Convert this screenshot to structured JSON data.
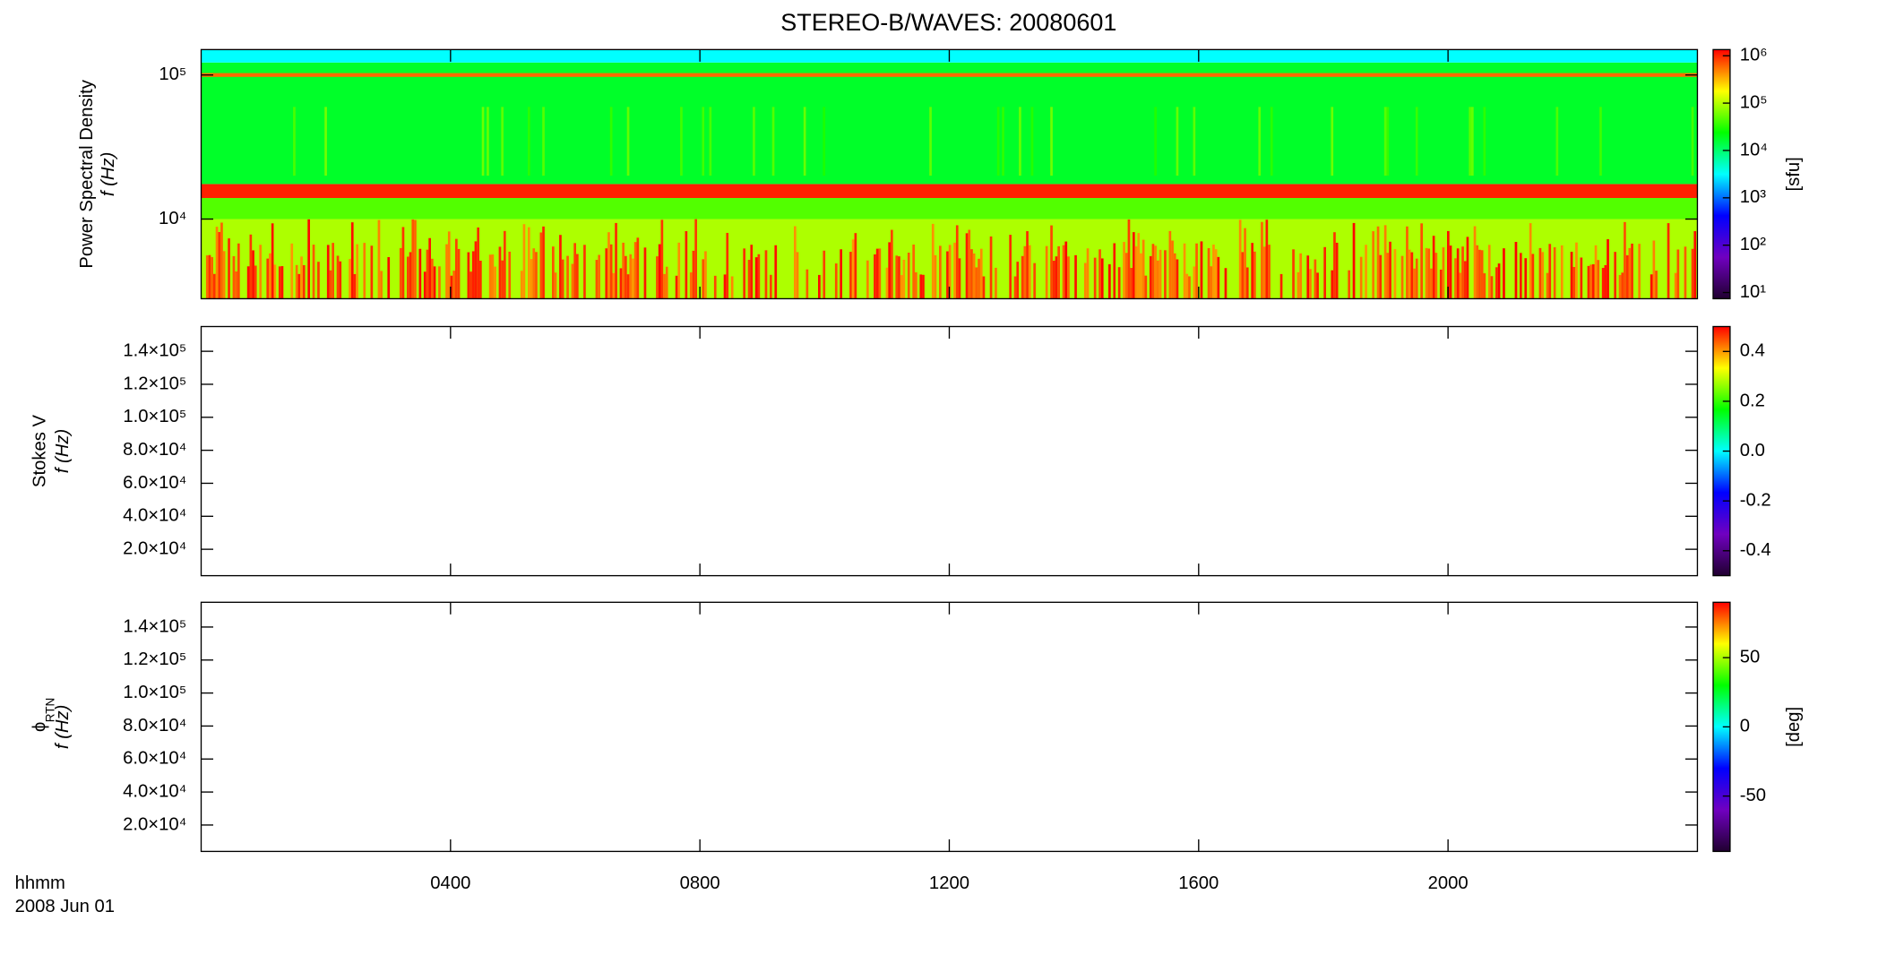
{
  "chart_data": [
    {
      "type": "heatmap",
      "title": "STEREO-B/WAVES: 20080601",
      "ylabel": "Power Spectral Density",
      "ylabel_unit": "f (Hz)",
      "log_y": true,
      "ylim": [
        2800,
        150000
      ],
      "yticks": [
        {
          "value": 10000,
          "label": "10⁴"
        },
        {
          "value": 100000,
          "label": "10⁵"
        }
      ],
      "colorbar_log": true,
      "clim": [
        7.4,
        1350000
      ],
      "cticks": [
        {
          "value": 10,
          "label": "10¹"
        },
        {
          "value": 100,
          "label": "10²"
        },
        {
          "value": 1000,
          "label": "10³"
        },
        {
          "value": 10000,
          "label": "10⁴"
        },
        {
          "value": 100000,
          "label": "10⁵"
        },
        {
          "value": 1000000,
          "label": "10⁶"
        }
      ],
      "colorbar_label": "[sfu]"
    },
    {
      "type": "heatmap",
      "ylabel": "Stokes V",
      "ylabel_unit": "f (Hz)",
      "log_y": false,
      "ylim": [
        4000,
        155000
      ],
      "yticks": [
        {
          "value": 20000,
          "label": "2.0×10⁴"
        },
        {
          "value": 40000,
          "label": "4.0×10⁴"
        },
        {
          "value": 60000,
          "label": "6.0×10⁴"
        },
        {
          "value": 80000,
          "label": "8.0×10⁴"
        },
        {
          "value": 100000,
          "label": "1.0×10⁵"
        },
        {
          "value": 120000,
          "label": "1.2×10⁵"
        },
        {
          "value": 140000,
          "label": "1.4×10⁵"
        }
      ],
      "colorbar_log": false,
      "clim": [
        -0.5,
        0.5
      ],
      "cticks": [
        -0.4,
        -0.2,
        {
          "value": 0,
          "label": "0.0"
        },
        0.2,
        0.4
      ]
    },
    {
      "type": "heatmap",
      "ylabel": "ϕ",
      "ylabel_subscript": "RTN",
      "ylabel_unit": "f (Hz)",
      "log_y": false,
      "ylim": [
        4000,
        155000
      ],
      "yticks": [
        {
          "value": 20000,
          "label": "2.0×10⁴"
        },
        {
          "value": 40000,
          "label": "4.0×10⁴"
        },
        {
          "value": 60000,
          "label": "6.0×10⁴"
        },
        {
          "value": 80000,
          "label": "8.0×10⁴"
        },
        {
          "value": 100000,
          "label": "1.0×10⁵"
        },
        {
          "value": 120000,
          "label": "1.2×10⁵"
        },
        {
          "value": 140000,
          "label": "1.4×10⁵"
        }
      ],
      "colorbar_log": false,
      "clim": [
        -90,
        90
      ],
      "cticks": [
        -50,
        0,
        50
      ],
      "colorbar_label": "[deg]",
      "xlim": [
        0,
        24
      ],
      "xticks": [
        {
          "value": 4,
          "label": "0400"
        },
        {
          "value": 8,
          "label": "0800"
        },
        {
          "value": 12,
          "label": "1200"
        },
        {
          "value": 16,
          "label": "1600"
        },
        {
          "value": 20,
          "label": "2000"
        }
      ],
      "xlabel": "hhmm",
      "xlabel_date": "2008 Jun 01",
      "colormap": [
        "#200030",
        "#7000c0",
        "#0000ff",
        "#00ffff",
        "#00ff00",
        "#ffff00",
        "#ff0000"
      ]
    }
  ]
}
